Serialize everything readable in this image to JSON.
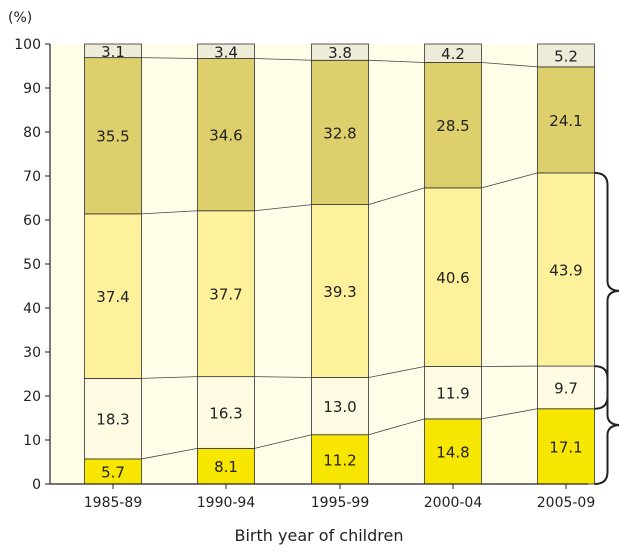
{
  "chart_data": {
    "type": "bar",
    "stacked": true,
    "y_unit_label": "(%)",
    "xlabel": "Birth year of children",
    "ylabel": "",
    "ylim": [
      0,
      100
    ],
    "yticks": [
      0,
      10,
      20,
      30,
      40,
      50,
      60,
      70,
      80,
      90,
      100
    ],
    "categories": [
      "1985-89",
      "1990-94",
      "1995-99",
      "2000-04",
      "2005-09"
    ],
    "series": [
      {
        "values": [
          5.7,
          8.1,
          11.2,
          14.8,
          17.1
        ],
        "color": "#f7e600"
      },
      {
        "values": [
          18.3,
          16.3,
          13.0,
          11.9,
          9.7
        ],
        "color": "#fffbe3"
      },
      {
        "values": [
          37.4,
          37.7,
          39.3,
          40.6,
          43.9
        ],
        "color": "#fdf29b"
      },
      {
        "values": [
          35.5,
          34.6,
          32.8,
          28.5,
          24.1
        ],
        "color": "#ddcf6b"
      },
      {
        "values": [
          3.1,
          3.4,
          3.8,
          4.2,
          5.2
        ],
        "color": "#eeebd8"
      }
    ],
    "value_labels": [
      [
        "5.7",
        "8.1",
        "11.2",
        "14.8",
        "17.1"
      ],
      [
        "18.3",
        "16.3",
        "13.0",
        "11.9",
        "9.7"
      ],
      [
        "37.4",
        "37.7",
        "39.3",
        "40.6",
        "43.9"
      ],
      [
        "35.5",
        "34.6",
        "32.8",
        "28.5",
        "24.1"
      ],
      [
        "3.1",
        "3.4",
        "3.8",
        "4.2",
        "5.2"
      ]
    ],
    "connector_lines": true,
    "grid": false,
    "background_color": "#fffde8"
  }
}
